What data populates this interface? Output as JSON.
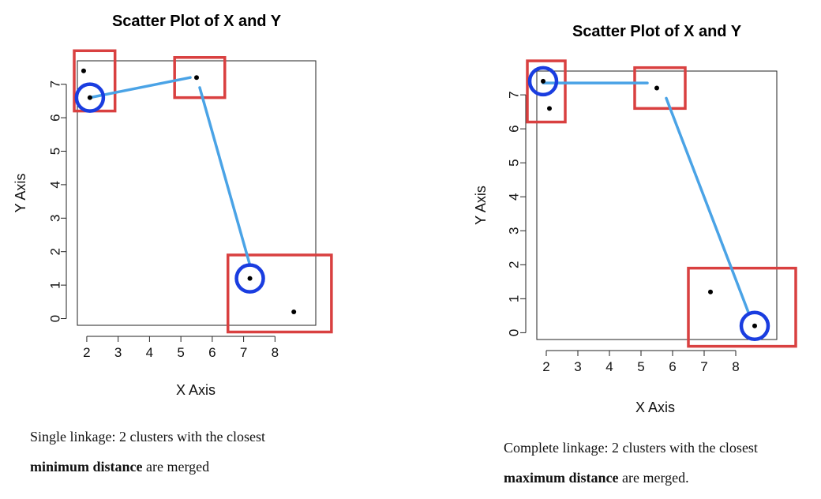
{
  "charts": {
    "single": {
      "caption": {
        "line1": "Single linkage: 2 clusters with the closest",
        "bold": "minimum distance",
        "rest": " are merged"
      }
    },
    "complete": {
      "caption": {
        "line1": "Complete linkage: 2 clusters with the closest",
        "bold": "maximum distance",
        "rest": " are merged."
      }
    }
  },
  "chart_data": [
    {
      "type": "scatter",
      "title": "Scatter Plot of X and Y",
      "xlabel": "X Axis",
      "ylabel": "Y Axis",
      "xlim": [
        1.7,
        9.3
      ],
      "ylim": [
        -0.2,
        7.7
      ],
      "xticks": [
        2,
        3,
        4,
        5,
        6,
        7,
        8
      ],
      "yticks": [
        0,
        1,
        2,
        3,
        4,
        5,
        6,
        7
      ],
      "grid": false,
      "points": [
        {
          "x": 1.9,
          "y": 7.4
        },
        {
          "x": 2.1,
          "y": 6.6
        },
        {
          "x": 5.5,
          "y": 7.2
        },
        {
          "x": 7.2,
          "y": 1.2
        },
        {
          "x": 8.6,
          "y": 0.2
        }
      ],
      "clusters": [
        {
          "x": [
            1.6,
            2.9
          ],
          "y": [
            6.2,
            8.0
          ]
        },
        {
          "x": [
            4.8,
            6.4
          ],
          "y": [
            6.6,
            7.8
          ]
        },
        {
          "x": [
            6.5,
            9.8
          ],
          "y": [
            -0.4,
            1.9
          ]
        }
      ],
      "highlight_points": [
        1,
        3
      ],
      "link_lines": [
        {
          "x": [
            2.1,
            5.3
          ],
          "y": [
            6.6,
            7.2
          ]
        },
        {
          "x": [
            5.6,
            7.2
          ],
          "y": [
            6.9,
            1.6
          ]
        }
      ],
      "colors": {
        "cluster_box": "#d94040",
        "highlight": "#1a3de0",
        "link": "#4aa3e6",
        "point": "#000000"
      }
    },
    {
      "type": "scatter",
      "title": "Scatter Plot of X and Y",
      "xlabel": "X Axis",
      "ylabel": "Y Axis",
      "xlim": [
        1.7,
        9.3
      ],
      "ylim": [
        -0.2,
        7.7
      ],
      "xticks": [
        2,
        3,
        4,
        5,
        6,
        7,
        8
      ],
      "yticks": [
        0,
        1,
        2,
        3,
        4,
        5,
        6,
        7
      ],
      "grid": false,
      "points": [
        {
          "x": 1.9,
          "y": 7.4
        },
        {
          "x": 2.1,
          "y": 6.6
        },
        {
          "x": 5.5,
          "y": 7.2
        },
        {
          "x": 7.2,
          "y": 1.2
        },
        {
          "x": 8.6,
          "y": 0.2
        }
      ],
      "clusters": [
        {
          "x": [
            1.4,
            2.6
          ],
          "y": [
            6.2,
            8.0
          ]
        },
        {
          "x": [
            4.8,
            6.4
          ],
          "y": [
            6.6,
            7.8
          ]
        },
        {
          "x": [
            6.5,
            9.9
          ],
          "y": [
            -0.4,
            1.9
          ]
        }
      ],
      "highlight_points": [
        0,
        4
      ],
      "link_lines": [
        {
          "x": [
            1.9,
            5.2
          ],
          "y": [
            7.35,
            7.35
          ]
        },
        {
          "x": [
            5.8,
            8.4
          ],
          "y": [
            6.9,
            0.6
          ]
        }
      ],
      "colors": {
        "cluster_box": "#d94040",
        "highlight": "#1a3de0",
        "link": "#4aa3e6",
        "point": "#000000"
      }
    }
  ]
}
